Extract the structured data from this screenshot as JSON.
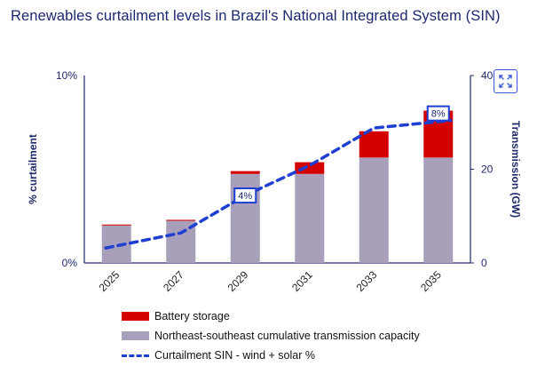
{
  "title": "Renewables curtailment levels in Brazil's National Integrated System (SIN)",
  "toolbar": {
    "expand_icon": "expand-arrows-icon"
  },
  "colors": {
    "battery": "#d40000",
    "transmission": "#a89fba",
    "curtailment": "#1f3fd0",
    "axis": "#1f2a6b",
    "label_box": "#1f3fd0"
  },
  "chart_data": {
    "type": "bar",
    "title": "Renewables curtailment levels in Brazil's National Integrated System (SIN)",
    "categories": [
      "2025",
      "2027",
      "2029",
      "2031",
      "2033",
      "2035"
    ],
    "left_axis": {
      "label": "% curtailment",
      "range": [
        0,
        10
      ],
      "ticks": [
        "0%",
        "10%"
      ]
    },
    "right_axis": {
      "label": "Transmission (GW)",
      "range": [
        0,
        40
      ],
      "ticks": [
        "0",
        "20",
        "40"
      ]
    },
    "series": [
      {
        "name": "Northeast-southeast cumulative transmission capacity",
        "kind": "bar-stack-base",
        "axis": "right",
        "values": [
          8,
          9,
          19,
          19,
          22.5,
          22.5
        ]
      },
      {
        "name": "Battery storage",
        "kind": "bar-stack-top",
        "axis": "right",
        "values": [
          0.2,
          0.2,
          0.6,
          2.5,
          5.6,
          10
        ]
      },
      {
        "name": "Curtailment SIN - wind + solar %",
        "kind": "line",
        "axis": "left",
        "values": [
          0.8,
          1.6,
          3.6,
          5.2,
          7.2,
          7.6
        ]
      }
    ],
    "annotations": [
      {
        "category": "2029",
        "text": "4%"
      },
      {
        "category": "2035",
        "text": "8%"
      }
    ],
    "legend": [
      {
        "label": "Battery storage",
        "key": "battery"
      },
      {
        "label": "Northeast-southeast cumulative transmission capacity",
        "key": "transmission"
      },
      {
        "label": "Curtailment SIN - wind + solar %",
        "key": "curtailment"
      }
    ]
  }
}
